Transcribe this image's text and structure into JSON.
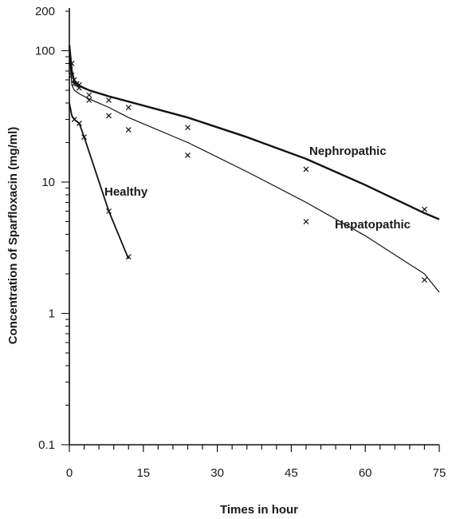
{
  "chart_data": {
    "type": "line",
    "xlabel": "Times in hour",
    "ylabel": "Concentration of Sparfloxacin (mg/ml)",
    "xlim": [
      0,
      75
    ],
    "ylim": [
      0.1,
      200
    ],
    "yscale": "log",
    "xticks": [
      "0",
      "15",
      "30",
      "45",
      "60",
      "75"
    ],
    "yticks": [
      "0.1",
      "1",
      "10",
      "100",
      "200"
    ],
    "grid": false,
    "series": [
      {
        "name": "Nephropathic",
        "color": "#111111",
        "x": [
          0,
          0.5,
          1,
          2,
          4,
          8,
          12,
          24,
          36,
          48,
          60,
          72,
          75
        ],
        "y": [
          110,
          70,
          58,
          54,
          50,
          45,
          41,
          31,
          22,
          15,
          9.5,
          5.8,
          5.2
        ],
        "points": {
          "x": [
            0.5,
            1,
            1.5,
            2,
            4,
            8,
            12,
            24,
            48,
            72
          ],
          "y": [
            80,
            60,
            56,
            55,
            46,
            42,
            37,
            26,
            12.5,
            6.2
          ]
        }
      },
      {
        "name": "Hepatopathic",
        "color": "#111111",
        "x": [
          0,
          0.5,
          1,
          2,
          4,
          8,
          12,
          24,
          36,
          48,
          60,
          72,
          75
        ],
        "y": [
          95,
          55,
          50,
          47,
          43,
          37,
          31,
          20,
          12,
          7,
          3.9,
          2.0,
          1.45
        ],
        "points": {
          "x": [
            0.5,
            1,
            2,
            4,
            8,
            12,
            24,
            48,
            72
          ],
          "y": [
            65,
            56,
            52,
            42,
            32,
            25,
            16,
            5.0,
            1.8
          ]
        }
      },
      {
        "name": "Healthy",
        "color": "#111111",
        "x": [
          0,
          0.5,
          1,
          2,
          3,
          8,
          12
        ],
        "y": [
          40,
          32,
          30,
          28,
          22,
          6,
          2.6
        ],
        "points": {
          "x": [
            1,
            2,
            3,
            8,
            12
          ],
          "y": [
            30,
            28,
            22,
            6,
            2.7
          ]
        }
      }
    ]
  }
}
